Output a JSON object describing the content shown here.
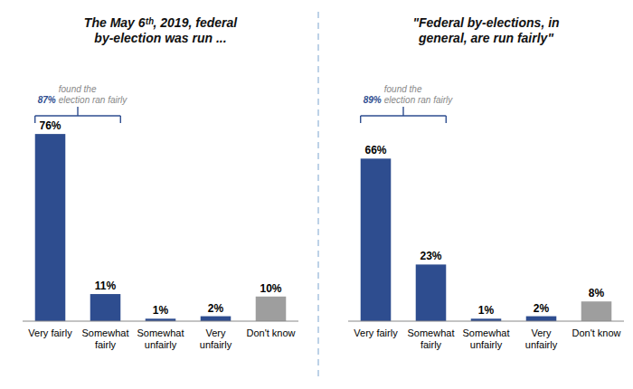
{
  "chart_data": [
    {
      "type": "bar",
      "title": "The May 6ᵗʰ, 2019, federal\nby-election was run ...",
      "categories": [
        "Very fairly",
        "Somewhat\nfairly",
        "Somewhat\nunfairly",
        "Very\nunfairly",
        "Don't know"
      ],
      "values": [
        76,
        11,
        1,
        2,
        10
      ],
      "value_labels": [
        "76%",
        "11%",
        "1%",
        "2%",
        "10%"
      ],
      "colors": [
        "#2E4D8F",
        "#2E4D8F",
        "#2E4D8F",
        "#2E4D8F",
        "#9E9E9E"
      ],
      "ylim": [
        0,
        90
      ],
      "grid": false,
      "tick_labels": "x",
      "data_labels": true,
      "annotations": [
        "87%",
        " found the\nelection ran fairly"
      ]
    },
    {
      "type": "bar",
      "title": "\"Federal by-elections, in\ngeneral, are run fairly\"",
      "categories": [
        "Very fairly",
        "Somewhat\nfairly",
        "Somewhat\nunfairly",
        "Very\nunfairly",
        "Don't know"
      ],
      "values": [
        66,
        23,
        1,
        2,
        8
      ],
      "value_labels": [
        "66%",
        "23%",
        "1%",
        "2%",
        "8%"
      ],
      "colors": [
        "#2E4D8F",
        "#2E4D8F",
        "#2E4D8F",
        "#2E4D8F",
        "#9E9E9E"
      ],
      "ylim": [
        0,
        90
      ],
      "grid": false,
      "tick_labels": "x",
      "data_labels": true,
      "annotations": [
        "89%",
        " found the\nelection ran fairly"
      ]
    }
  ]
}
